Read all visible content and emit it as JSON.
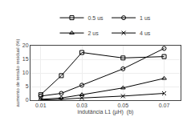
{
  "chart_data": {
    "type": "line",
    "x": [
      0.01,
      0.02,
      0.03,
      0.05,
      0.07
    ],
    "series": [
      {
        "name": "0.5 us",
        "color": "black",
        "marker": "square",
        "values": [
          2.0,
          9.0,
          17.5,
          15.5,
          16.0
        ]
      },
      {
        "name": "1 us",
        "color": "black",
        "marker": "circle",
        "values": [
          1.5,
          2.5,
          5.5,
          11.5,
          19.0
        ]
      },
      {
        "name": "2 us",
        "color": "black",
        "marker": "triangle",
        "values": [
          0.3,
          0.8,
          2.0,
          4.5,
          8.0
        ]
      },
      {
        "name": "4 us",
        "color": "black",
        "marker": "x",
        "values": [
          0.1,
          0.3,
          0.8,
          1.5,
          2.5
        ]
      }
    ],
    "xlabel": "indutância L1 (µH)  (b)",
    "ylabel": "aumento de tensão residual (%)",
    "xlim": [
      0.005,
      0.078
    ],
    "xticks": [
      0.01,
      0.03,
      0.05,
      0.07
    ],
    "ylim": [
      0,
      20
    ],
    "yticks": [
      0,
      5,
      10,
      15,
      20
    ],
    "grid": true,
    "legend": "upper center"
  }
}
